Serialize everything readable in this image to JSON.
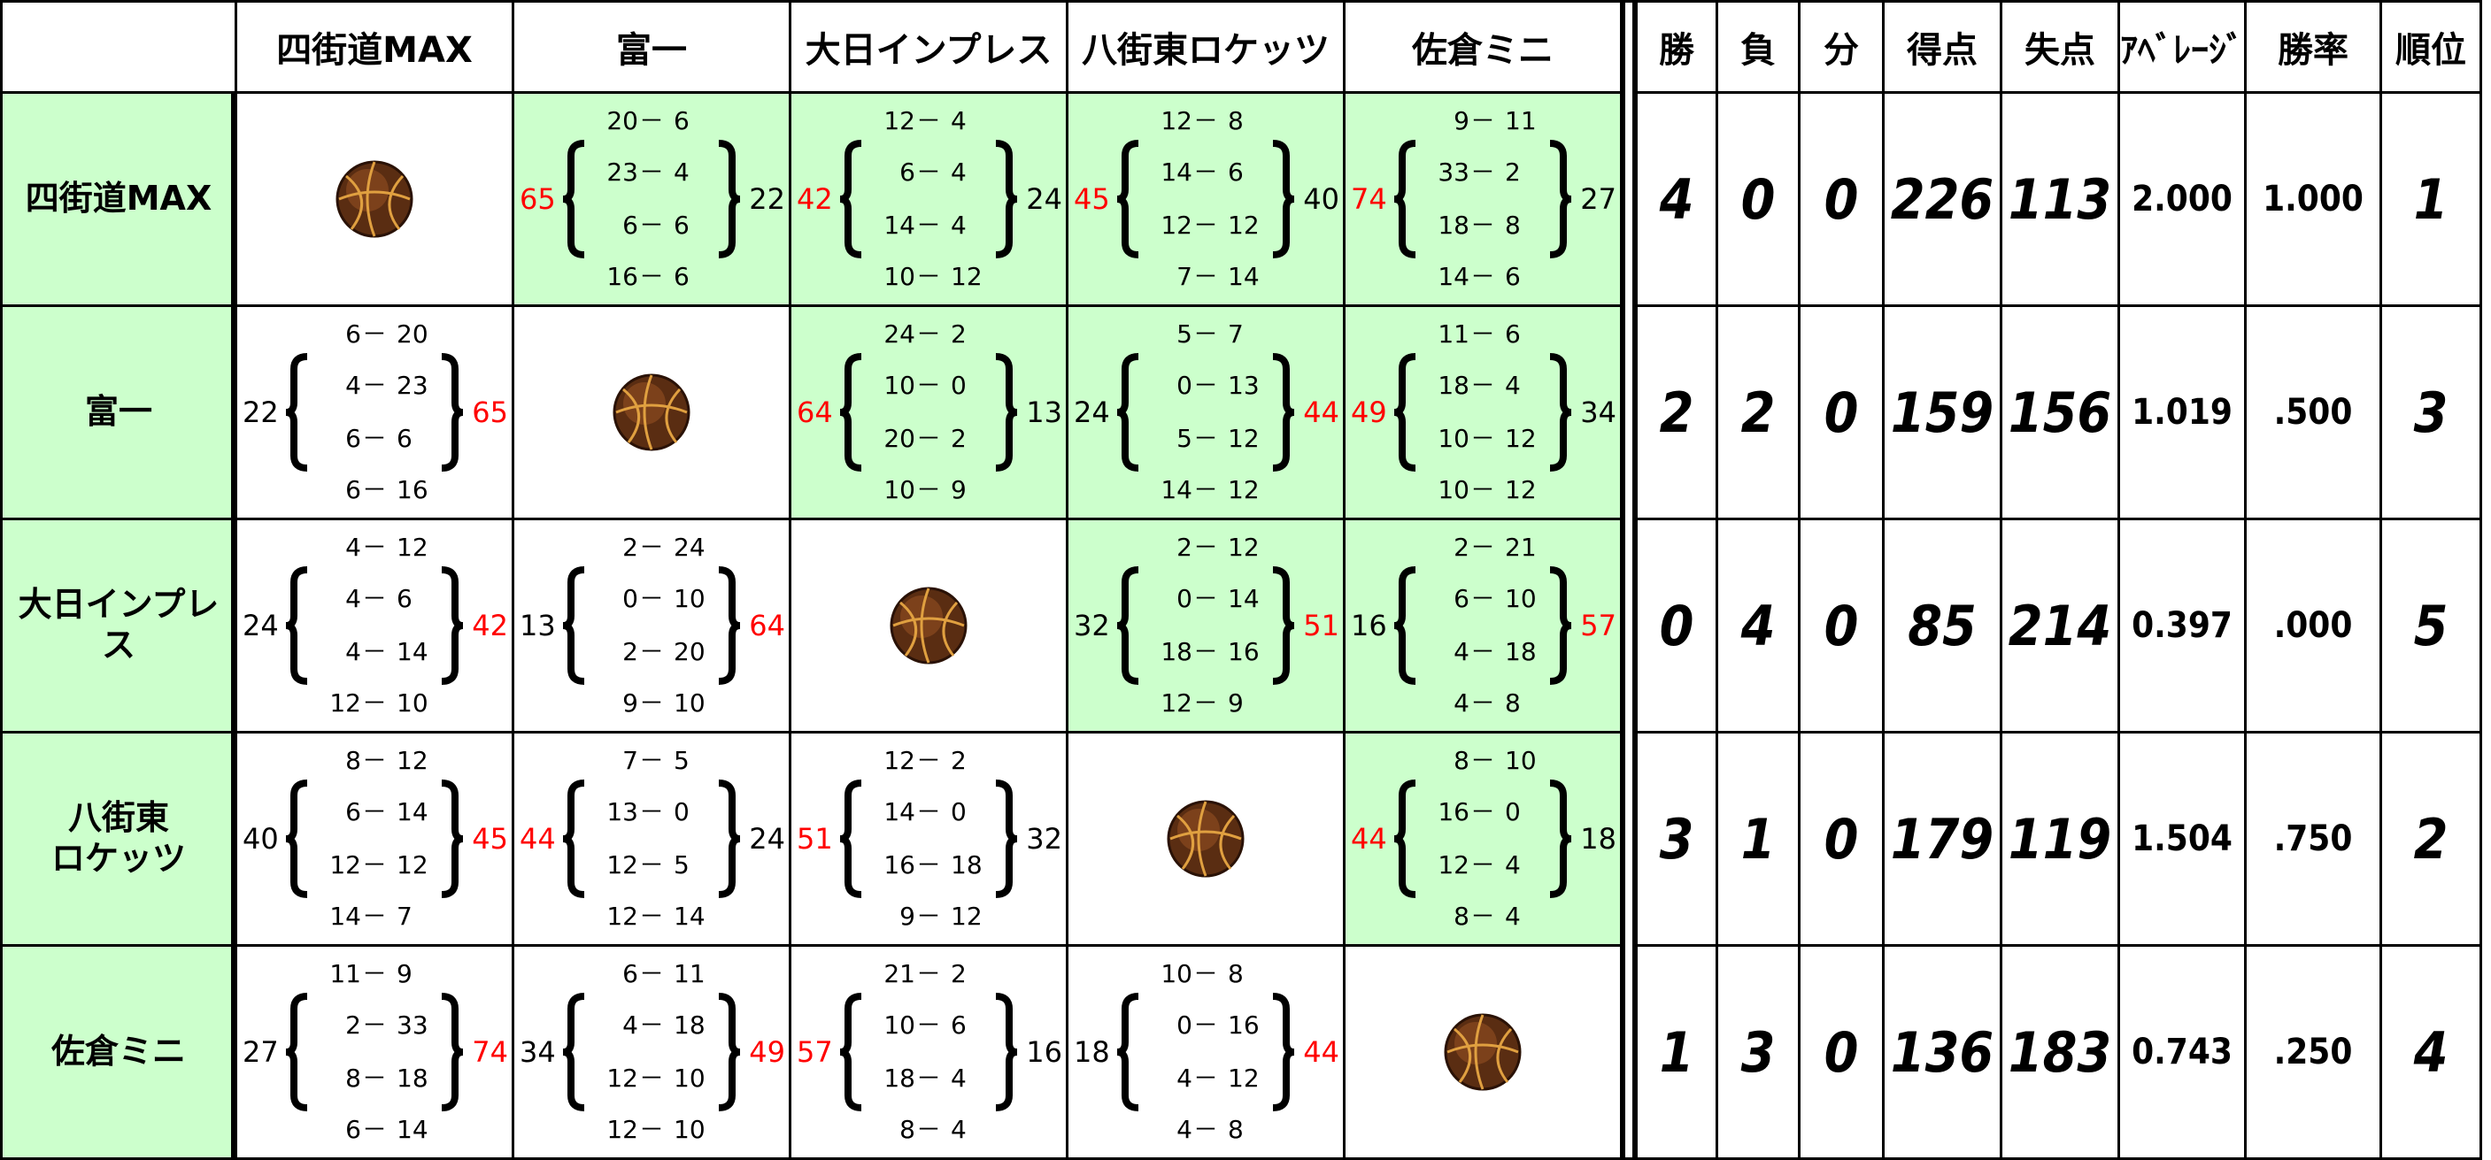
{
  "columns": [
    "四街道MAX",
    "富一",
    "大日インプレス",
    "八街東ロケッツ",
    "佐倉ミニ"
  ],
  "stats_headers": [
    "勝",
    "負",
    "分",
    "得点",
    "失点",
    "ｱﾍﾞﾚｰｼﾞ",
    "勝率",
    "順位"
  ],
  "separator": "－",
  "rows": [
    {
      "team": "四街道MAX",
      "games": [
        null,
        {
          "score": 65,
          "quarters": [
            [
              20,
              6
            ],
            [
              23,
              4
            ],
            [
              6,
              6
            ],
            [
              16,
              6
            ]
          ],
          "opponent_score": 22
        },
        {
          "score": 42,
          "quarters": [
            [
              12,
              4
            ],
            [
              6,
              4
            ],
            [
              14,
              4
            ],
            [
              10,
              12
            ]
          ],
          "opponent_score": 24
        },
        {
          "score": 45,
          "quarters": [
            [
              12,
              8
            ],
            [
              14,
              6
            ],
            [
              12,
              12
            ],
            [
              7,
              14
            ]
          ],
          "opponent_score": 40
        },
        {
          "score": 74,
          "quarters": [
            [
              9,
              11
            ],
            [
              33,
              2
            ],
            [
              18,
              8
            ],
            [
              14,
              6
            ]
          ],
          "opponent_score": 27
        }
      ],
      "stats": [
        4,
        0,
        0,
        226,
        113,
        "2.000",
        "1.000",
        1
      ]
    },
    {
      "team": "富一",
      "games": [
        {
          "score": 22,
          "quarters": [
            [
              6,
              20
            ],
            [
              4,
              23
            ],
            [
              6,
              6
            ],
            [
              6,
              16
            ]
          ],
          "opponent_score": 65
        },
        null,
        {
          "score": 64,
          "quarters": [
            [
              24,
              2
            ],
            [
              10,
              0
            ],
            [
              20,
              2
            ],
            [
              10,
              9
            ]
          ],
          "opponent_score": 13
        },
        {
          "score": 24,
          "quarters": [
            [
              5,
              7
            ],
            [
              0,
              13
            ],
            [
              5,
              12
            ],
            [
              14,
              12
            ]
          ],
          "opponent_score": 44
        },
        {
          "score": 49,
          "quarters": [
            [
              11,
              6
            ],
            [
              18,
              4
            ],
            [
              10,
              12
            ],
            [
              10,
              12
            ]
          ],
          "opponent_score": 34
        }
      ],
      "stats": [
        2,
        2,
        0,
        159,
        156,
        "1.019",
        ".500",
        3
      ]
    },
    {
      "team": "大日インプレス",
      "games": [
        {
          "score": 24,
          "quarters": [
            [
              4,
              12
            ],
            [
              4,
              6
            ],
            [
              4,
              14
            ],
            [
              12,
              10
            ]
          ],
          "opponent_score": 42
        },
        {
          "score": 13,
          "quarters": [
            [
              2,
              24
            ],
            [
              0,
              10
            ],
            [
              2,
              20
            ],
            [
              9,
              10
            ]
          ],
          "opponent_score": 64
        },
        null,
        {
          "score": 32,
          "quarters": [
            [
              2,
              12
            ],
            [
              0,
              14
            ],
            [
              18,
              16
            ],
            [
              12,
              9
            ]
          ],
          "opponent_score": 51
        },
        {
          "score": 16,
          "quarters": [
            [
              2,
              21
            ],
            [
              6,
              10
            ],
            [
              4,
              18
            ],
            [
              4,
              8
            ]
          ],
          "opponent_score": 57
        }
      ],
      "stats": [
        0,
        4,
        0,
        85,
        214,
        "0.397",
        ".000",
        5
      ]
    },
    {
      "team": "八街東\nロケッツ",
      "games": [
        {
          "score": 40,
          "quarters": [
            [
              8,
              12
            ],
            [
              6,
              14
            ],
            [
              12,
              12
            ],
            [
              14,
              7
            ]
          ],
          "opponent_score": 45
        },
        {
          "score": 44,
          "quarters": [
            [
              7,
              5
            ],
            [
              13,
              0
            ],
            [
              12,
              5
            ],
            [
              12,
              14
            ]
          ],
          "opponent_score": 24
        },
        {
          "score": 51,
          "quarters": [
            [
              12,
              2
            ],
            [
              14,
              0
            ],
            [
              16,
              18
            ],
            [
              9,
              12
            ]
          ],
          "opponent_score": 32
        },
        null,
        {
          "score": 44,
          "quarters": [
            [
              8,
              10
            ],
            [
              16,
              0
            ],
            [
              12,
              4
            ],
            [
              8,
              4
            ]
          ],
          "opponent_score": 18
        }
      ],
      "stats": [
        3,
        1,
        0,
        179,
        119,
        "1.504",
        ".750",
        2
      ]
    },
    {
      "team": "佐倉ミニ",
      "games": [
        {
          "score": 27,
          "quarters": [
            [
              11,
              9
            ],
            [
              2,
              33
            ],
            [
              8,
              18
            ],
            [
              6,
              14
            ]
          ],
          "opponent_score": 74
        },
        {
          "score": 34,
          "quarters": [
            [
              6,
              11
            ],
            [
              4,
              18
            ],
            [
              12,
              10
            ],
            [
              12,
              10
            ]
          ],
          "opponent_score": 49
        },
        {
          "score": 57,
          "quarters": [
            [
              21,
              2
            ],
            [
              10,
              6
            ],
            [
              18,
              4
            ],
            [
              8,
              4
            ]
          ],
          "opponent_score": 16
        },
        {
          "score": 18,
          "quarters": [
            [
              10,
              8
            ],
            [
              0,
              16
            ],
            [
              4,
              12
            ],
            [
              4,
              8
            ]
          ],
          "opponent_score": 44
        },
        null
      ],
      "stats": [
        1,
        3,
        0,
        136,
        183,
        "0.743",
        ".250",
        4
      ]
    }
  ]
}
